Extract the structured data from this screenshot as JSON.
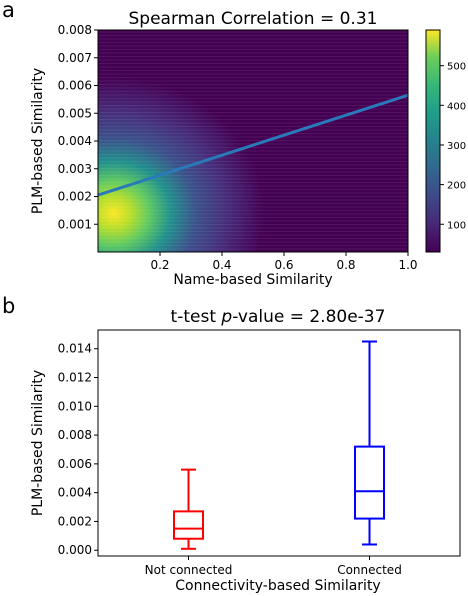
{
  "panels": {
    "a_label": "a",
    "b_label": "b"
  },
  "chart_data": [
    {
      "type": "heatmap",
      "panel": "a",
      "title": "Spearman Correlation = 0.31",
      "xlabel": "Name-based Similarity",
      "ylabel": "PLM-based Similarity",
      "xlim": [
        0.0,
        1.0
      ],
      "ylim": [
        0.0,
        0.008
      ],
      "xticks": [
        {
          "value": 0.2,
          "label": "0.2"
        },
        {
          "value": 0.4,
          "label": "0.4"
        },
        {
          "value": 0.6,
          "label": "0.6"
        },
        {
          "value": 0.8,
          "label": "0.8"
        },
        {
          "value": 1.0,
          "label": "1.0"
        }
      ],
      "yticks": [
        {
          "value": 0.001,
          "label": "0.001"
        },
        {
          "value": 0.002,
          "label": "0.002"
        },
        {
          "value": 0.003,
          "label": "0.003"
        },
        {
          "value": 0.004,
          "label": "0.004"
        },
        {
          "value": 0.005,
          "label": "0.005"
        },
        {
          "value": 0.006,
          "label": "0.006"
        },
        {
          "value": 0.007,
          "label": "0.007"
        },
        {
          "value": 0.008,
          "label": "0.008"
        }
      ],
      "density_peak": {
        "x": 0.05,
        "y": 0.0014,
        "value": 580
      },
      "trend_line": {
        "x": [
          0.0,
          1.0
        ],
        "y": [
          0.00205,
          0.00565
        ],
        "color": "#2a7ab9"
      },
      "colorbar": {
        "colormap": "viridis",
        "range": [
          30,
          590
        ],
        "ticks": [
          {
            "value": 100,
            "label": "100"
          },
          {
            "value": 200,
            "label": "200"
          },
          {
            "value": 300,
            "label": "300"
          },
          {
            "value": 400,
            "label": "400"
          },
          {
            "value": 500,
            "label": "500"
          }
        ]
      }
    },
    {
      "type": "box",
      "panel": "b",
      "title_prefix": "t-test ",
      "title_italic": "p",
      "title_suffix": "-value = 2.80e-37",
      "xlabel": "Connectivity-based Similarity",
      "ylabel": "PLM-based Similarity",
      "ylim": [
        -0.0004,
        0.0153
      ],
      "yticks": [
        {
          "value": 0.0,
          "label": "0.000"
        },
        {
          "value": 0.002,
          "label": "0.002"
        },
        {
          "value": 0.004,
          "label": "0.004"
        },
        {
          "value": 0.006,
          "label": "0.006"
        },
        {
          "value": 0.008,
          "label": "0.008"
        },
        {
          "value": 0.01,
          "label": "0.010"
        },
        {
          "value": 0.012,
          "label": "0.012"
        },
        {
          "value": 0.014,
          "label": "0.014"
        }
      ],
      "categories": [
        "Not connected",
        "Connected"
      ],
      "boxes": [
        {
          "category": "Not connected",
          "color": "#ff0000",
          "whisker_low": 0.0001,
          "q1": 0.0008,
          "median": 0.0015,
          "q3": 0.0027,
          "whisker_high": 0.0056
        },
        {
          "category": "Connected",
          "color": "#0000ff",
          "whisker_low": 0.0004,
          "q1": 0.0022,
          "median": 0.0041,
          "q3": 0.0072,
          "whisker_high": 0.0145
        }
      ]
    }
  ]
}
